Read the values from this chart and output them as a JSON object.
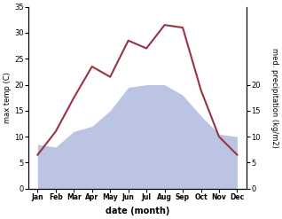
{
  "months": [
    "Jan",
    "Feb",
    "Mar",
    "Apr",
    "May",
    "Jun",
    "Jul",
    "Aug",
    "Sep",
    "Oct",
    "Nov",
    "Dec"
  ],
  "max_temp": [
    6.5,
    11.0,
    17.5,
    23.5,
    21.5,
    28.5,
    27.0,
    31.5,
    31.0,
    19.0,
    10.0,
    6.5
  ],
  "precipitation": [
    8.5,
    8.0,
    11.0,
    12.0,
    15.0,
    19.5,
    20.0,
    20.0,
    18.0,
    14.0,
    10.5,
    10.0
  ],
  "temp_color": "#993344",
  "precip_fill_color": "#bcc4e4",
  "ylim_temp": [
    0,
    35
  ],
  "ylim_precip": [
    0,
    35
  ],
  "ylabel_left": "max temp (C)",
  "ylabel_right": "med. precipitation (kg/m2)",
  "xlabel": "date (month)",
  "background_color": "#ffffff",
  "right_yticks": [
    0,
    5,
    10,
    15,
    20
  ],
  "left_yticks": [
    0,
    5,
    10,
    15,
    20,
    25,
    30,
    35
  ]
}
